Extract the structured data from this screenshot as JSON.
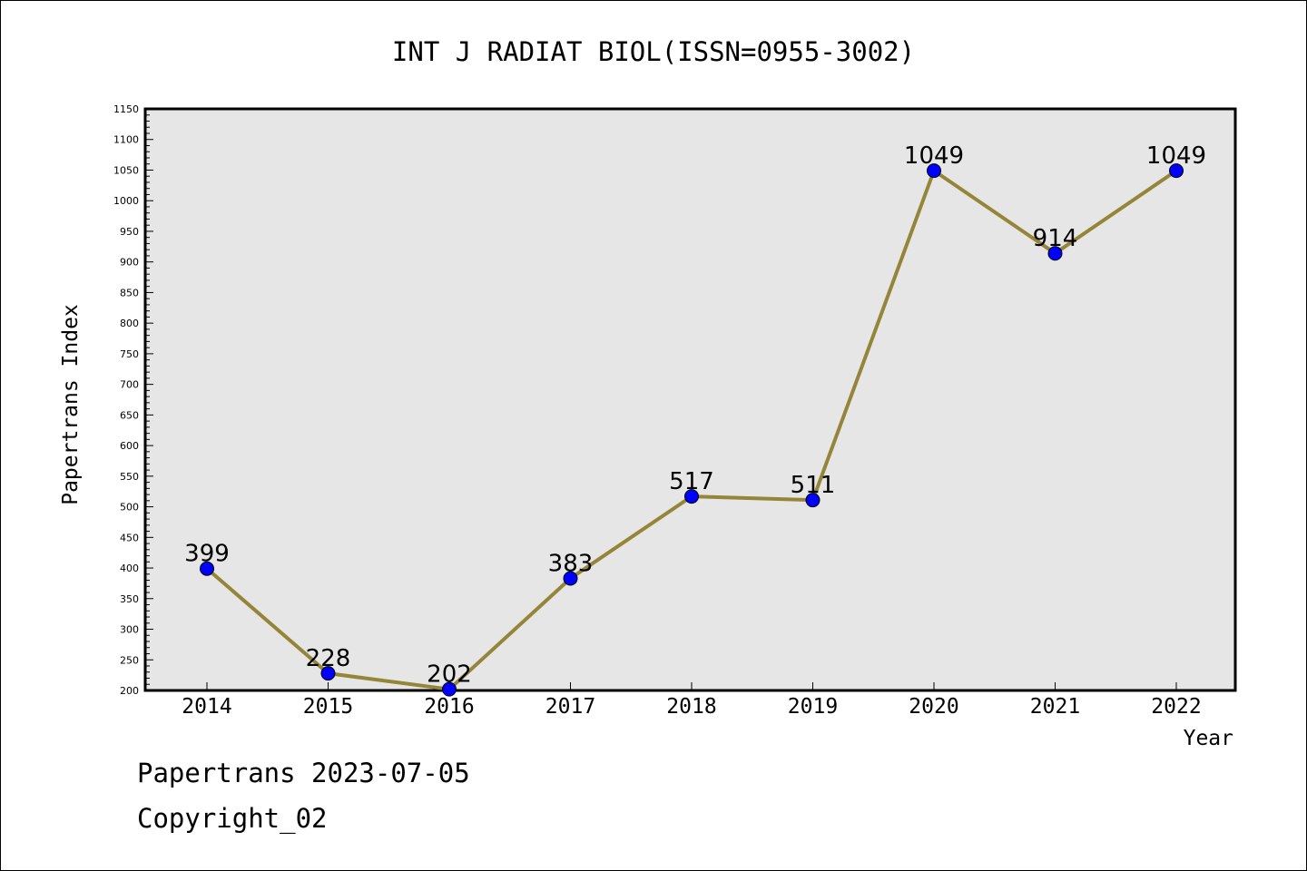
{
  "chart_data": {
    "type": "line",
    "title": "INT J RADIAT BIOL(ISSN=0955-3002)",
    "xlabel": "Year",
    "ylabel": "Papertrans Index",
    "categories": [
      "2014",
      "2015",
      "2016",
      "2017",
      "2018",
      "2019",
      "2020",
      "2021",
      "2022"
    ],
    "series": [
      {
        "values": [
          399,
          228,
          202,
          383,
          517,
          511,
          1049,
          914,
          1049
        ]
      }
    ],
    "ylim": [
      200,
      1150
    ],
    "ytick_step": 50,
    "data_labels": [
      "399",
      "228",
      "202",
      "383",
      "517",
      "511",
      "1049",
      "914",
      "1049"
    ],
    "grid": false,
    "legend": "none",
    "colors": {
      "line": "#958539",
      "marker": "#0000ff",
      "plot_background": "#e6e6e6"
    }
  },
  "footer": {
    "line1": "Papertrans 2023-07-05",
    "line2": "Copyright_02"
  }
}
